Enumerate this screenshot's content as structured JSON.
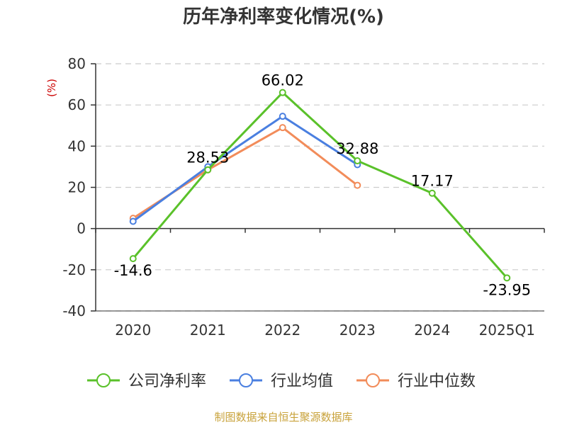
{
  "chart_data": {
    "type": "line",
    "title": "历年净利率变化情况(%)",
    "ylabel": "(%)",
    "categories": [
      "2020",
      "2021",
      "2022",
      "2023",
      "2024",
      "2025Q1"
    ],
    "yticks": [
      "80",
      "60",
      "40",
      "20",
      "0",
      "-20",
      "-40"
    ],
    "ylim": [
      -40,
      80
    ],
    "grid": true,
    "legend_position": "bottom",
    "series": [
      {
        "name": "公司净利率",
        "color": "#5ac12a",
        "values": [
          -14.6,
          28.53,
          66.02,
          32.88,
          17.17,
          -23.95
        ],
        "labels": [
          "-14.6",
          "28.53",
          "66.02",
          "32.88",
          "17.17",
          "-23.95"
        ]
      },
      {
        "name": "行业均值",
        "color": "#4a7fe0",
        "values": [
          3.5,
          30.0,
          54.5,
          31.0,
          null,
          null
        ]
      },
      {
        "name": "行业中位数",
        "color": "#f28c5a",
        "values": [
          5.0,
          28.5,
          49.0,
          21.0,
          null,
          null
        ]
      }
    ]
  },
  "footer": "制图数据来自恒生聚源数据库"
}
